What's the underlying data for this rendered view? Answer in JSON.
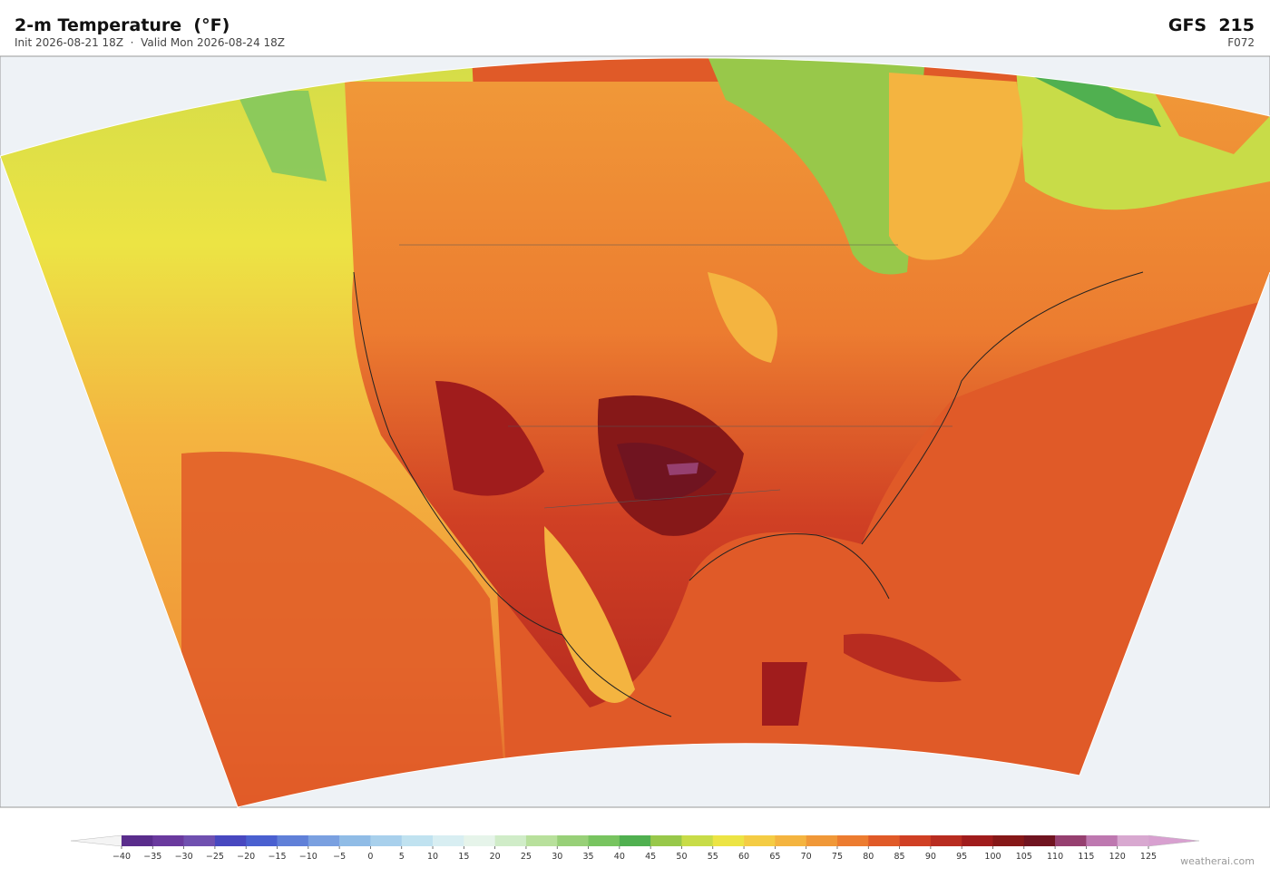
{
  "header": {
    "title": "2-m Temperature  (°F)",
    "subtitle": "Init 2026-08-21 18Z  ·  Valid Mon 2026-08-24 18Z",
    "model": "GFS  215",
    "forecast_hour": "F072"
  },
  "colorbar": {
    "ticks": [
      {
        "value": -40,
        "label": "−40"
      },
      {
        "value": -35,
        "label": "−35"
      },
      {
        "value": -30,
        "label": "−30"
      },
      {
        "value": -25,
        "label": "−25"
      },
      {
        "value": -20,
        "label": "−20"
      },
      {
        "value": -15,
        "label": "−15"
      },
      {
        "value": -10,
        "label": "−10"
      },
      {
        "value": -5,
        "label": "−5"
      },
      0,
      5,
      10,
      15,
      20,
      25,
      30,
      35,
      40,
      45,
      50,
      55,
      60,
      65,
      70,
      75,
      80,
      85,
      90,
      95,
      100,
      105,
      110,
      115,
      120,
      125
    ],
    "colors": [
      "#5a2d8c",
      "#6a3a9e",
      "#7050b0",
      "#4848c0",
      "#4a60d0",
      "#6080d8",
      "#7aa0e0",
      "#90bce6",
      "#a8d0ec",
      "#c0e2f0",
      "#d8eef2",
      "#e6f4ea",
      "#d0ecc8",
      "#b8e09c",
      "#98d078",
      "#78c460",
      "#50b050",
      "#98c84a",
      "#c8dc48",
      "#ece444",
      "#f4cc44",
      "#f4b440",
      "#f09838",
      "#ec7c30",
      "#e05a28",
      "#d04024",
      "#b82c20",
      "#a01c1c",
      "#861818",
      "#701420",
      "#964070",
      "#be78b0",
      "#d8a8d0"
    ],
    "under_color": "#f4f4f4",
    "over_color": "#d8a0d0"
  },
  "watermark": "weatherai.com"
}
